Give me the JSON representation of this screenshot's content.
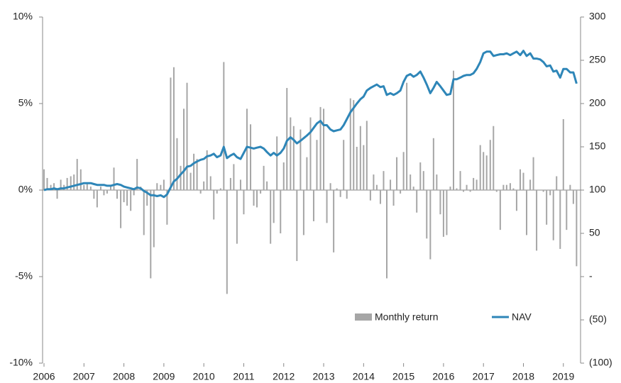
{
  "chart_data": {
    "type": "combo",
    "x": [
      2006.0,
      2006.08,
      2006.17,
      2006.25,
      2006.33,
      2006.42,
      2006.5,
      2006.58,
      2006.67,
      2006.75,
      2006.83,
      2006.92,
      2007.0,
      2007.08,
      2007.17,
      2007.25,
      2007.33,
      2007.42,
      2007.5,
      2007.58,
      2007.67,
      2007.75,
      2007.83,
      2007.92,
      2008.0,
      2008.08,
      2008.17,
      2008.25,
      2008.33,
      2008.42,
      2008.5,
      2008.58,
      2008.67,
      2008.75,
      2008.83,
      2008.92,
      2009.0,
      2009.08,
      2009.17,
      2009.25,
      2009.33,
      2009.42,
      2009.5,
      2009.58,
      2009.67,
      2009.75,
      2009.83,
      2009.92,
      2010.0,
      2010.08,
      2010.17,
      2010.25,
      2010.33,
      2010.42,
      2010.5,
      2010.58,
      2010.67,
      2010.75,
      2010.83,
      2010.92,
      2011.0,
      2011.08,
      2011.17,
      2011.25,
      2011.33,
      2011.42,
      2011.5,
      2011.58,
      2011.67,
      2011.75,
      2011.83,
      2011.92,
      2012.0,
      2012.08,
      2012.17,
      2012.25,
      2012.33,
      2012.42,
      2012.5,
      2012.58,
      2012.67,
      2012.75,
      2012.83,
      2012.92,
      2013.0,
      2013.08,
      2013.17,
      2013.25,
      2013.33,
      2013.42,
      2013.5,
      2013.58,
      2013.67,
      2013.75,
      2013.83,
      2013.92,
      2014.0,
      2014.08,
      2014.17,
      2014.25,
      2014.33,
      2014.42,
      2014.5,
      2014.58,
      2014.67,
      2014.75,
      2014.83,
      2014.92,
      2015.0,
      2015.08,
      2015.17,
      2015.25,
      2015.33,
      2015.42,
      2015.5,
      2015.58,
      2015.67,
      2015.75,
      2015.83,
      2015.92,
      2016.0,
      2016.08,
      2016.17,
      2016.25,
      2016.33,
      2016.42,
      2016.5,
      2016.58,
      2016.67,
      2016.75,
      2016.83,
      2016.92,
      2017.0,
      2017.08,
      2017.17,
      2017.25,
      2017.33,
      2017.42,
      2017.5,
      2017.58,
      2017.67,
      2017.75,
      2017.83,
      2017.92,
      2018.0,
      2018.08,
      2018.17,
      2018.25,
      2018.33,
      2018.42,
      2018.5,
      2018.58,
      2018.67,
      2018.75,
      2018.83,
      2018.92,
      2019.0,
      2019.08,
      2019.17,
      2019.25,
      2019.33
    ],
    "series": [
      {
        "name": "Monthly return",
        "color": "#a6a6a6",
        "type": "bar",
        "values": [
          1.2,
          0.7,
          0.3,
          0.4,
          -0.5,
          0.6,
          0.3,
          0.7,
          0.8,
          0.9,
          1.8,
          1.2,
          0.3,
          0.4,
          0.2,
          -0.5,
          -1.0,
          0.2,
          -0.3,
          -0.2,
          0.3,
          1.3,
          -0.5,
          -2.2,
          -0.7,
          -0.9,
          -1.2,
          -0.3,
          1.8,
          0.2,
          -2.6,
          -0.9,
          -5.1,
          -3.3,
          0.4,
          0.3,
          0.6,
          -2.0,
          6.5,
          7.1,
          3.0,
          1.4,
          4.7,
          6.2,
          1.0,
          2.1,
          1.8,
          -0.2,
          0.5,
          2.3,
          0.8,
          -1.7,
          -0.2,
          0.1,
          7.4,
          -6.0,
          0.7,
          1.5,
          -3.1,
          0.6,
          -1.4,
          4.7,
          3.8,
          -0.9,
          -1.0,
          -0.2,
          1.4,
          0.5,
          -3.1,
          -1.9,
          3.1,
          -2.5,
          1.6,
          5.9,
          4.2,
          3.7,
          -4.1,
          3.5,
          -2.6,
          1.9,
          4.2,
          -1.8,
          2.9,
          4.8,
          4.7,
          -1.9,
          0.4,
          -3.6,
          0.1,
          -0.4,
          2.9,
          -0.5,
          5.3,
          5.2,
          2.5,
          3.7,
          2.6,
          4.0,
          -0.6,
          0.9,
          0.3,
          -0.8,
          1.1,
          -5.1,
          0.6,
          -0.9,
          1.9,
          -0.2,
          2.2,
          6.2,
          0.9,
          0.2,
          -1.3,
          1.6,
          1.1,
          -2.8,
          -4.0,
          3.0,
          0.9,
          -1.4,
          -2.7,
          -2.6,
          0.2,
          6.9,
          0.1,
          1.1,
          -0.1,
          0.3,
          -0.1,
          0.7,
          0.6,
          2.6,
          2.2,
          2.0,
          2.9,
          3.7,
          -0.1,
          -2.3,
          0.3,
          0.3,
          0.4,
          0.1,
          -1.2,
          1.2,
          1.0,
          -2.6,
          0.6,
          1.9,
          -3.5,
          0.0,
          -0.1,
          -2.0,
          -0.3,
          -2.9,
          0.8,
          -3.4,
          4.1,
          -2.3,
          0.3,
          -0.8,
          -4.4
        ]
      },
      {
        "name": "NAV",
        "color": "#2e86b8",
        "type": "line",
        "axis": "y2",
        "values": [
          100,
          101,
          101,
          102,
          101,
          102,
          102,
          103,
          104,
          105,
          106,
          107,
          108,
          108,
          108,
          107,
          106,
          106,
          106,
          105,
          105,
          106,
          107,
          106,
          104,
          103,
          102,
          101,
          103,
          102,
          99,
          97,
          94,
          94,
          93,
          94,
          92,
          95,
          103,
          110,
          113,
          118,
          122,
          127,
          128,
          131,
          133,
          135,
          136,
          139,
          140,
          142,
          138,
          140,
          150,
          137,
          140,
          142,
          138,
          136,
          143,
          150,
          149,
          148,
          149,
          150,
          148,
          144,
          140,
          143,
          140,
          143,
          148,
          157,
          161,
          158,
          154,
          157,
          160,
          163,
          167,
          172,
          177,
          180,
          175,
          175,
          170,
          168,
          169,
          170,
          175,
          182,
          190,
          195,
          200,
          205,
          208,
          215,
          218,
          220,
          222,
          219,
          220,
          210,
          212,
          210,
          212,
          215,
          225,
          232,
          234,
          231,
          233,
          237,
          230,
          222,
          212,
          218,
          225,
          220,
          215,
          210,
          211,
          228,
          228,
          230,
          232,
          233,
          233,
          235,
          240,
          248,
          258,
          260,
          260,
          255,
          256,
          257,
          257,
          258,
          256,
          258,
          260,
          256,
          261,
          255,
          258,
          252,
          252,
          251,
          248,
          243,
          244,
          237,
          238,
          230,
          240,
          240,
          236,
          236,
          223
        ]
      }
    ],
    "xlim": [
      2006,
      2019.43
    ],
    "xticks": [
      2006,
      2007,
      2008,
      2009,
      2010,
      2011,
      2012,
      2013,
      2014,
      2015,
      2016,
      2017,
      2018,
      2019
    ],
    "ylim": [
      -10,
      10
    ],
    "yticks": [
      {
        "value": 10,
        "label": "10%"
      },
      {
        "value": 5,
        "label": "5%"
      },
      {
        "value": 0,
        "label": "0%"
      },
      {
        "value": -5,
        "label": "-5%"
      },
      {
        "value": -10,
        "label": "-10%"
      }
    ],
    "y2lim": [
      -100,
      300
    ],
    "y2ticks": [
      300,
      250,
      200,
      150,
      100,
      50,
      {
        "value": 0,
        "label": "-"
      },
      {
        "value": -50,
        "label": "(50)"
      },
      {
        "value": -100,
        "label": "(100)"
      }
    ],
    "grid": false
  }
}
